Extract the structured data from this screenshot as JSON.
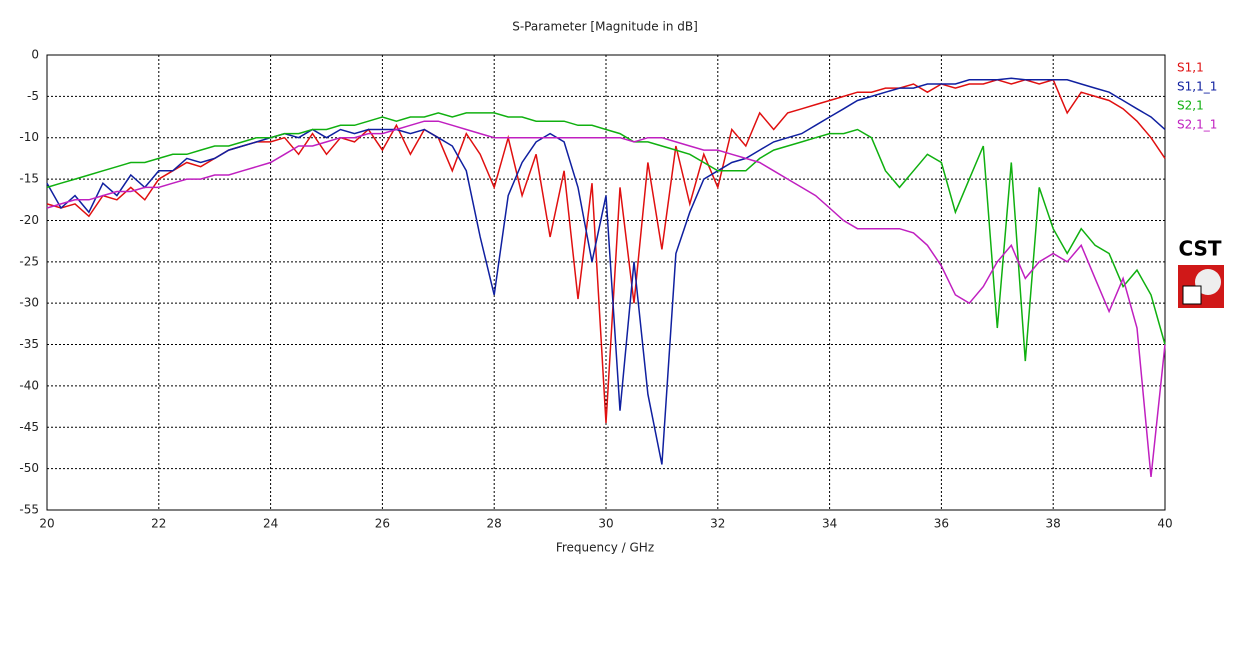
{
  "chart_data": {
    "type": "line",
    "title": "S-Parameter [Magnitude in dB]",
    "x_label": "Frequency / GHz",
    "logo": "CST",
    "x": [
      20,
      20.25,
      20.5,
      20.75,
      21,
      21.25,
      21.5,
      21.75,
      22,
      22.25,
      22.5,
      22.75,
      23,
      23.25,
      23.5,
      23.75,
      24,
      24.25,
      24.5,
      24.75,
      25,
      25.25,
      25.5,
      25.75,
      26,
      26.25,
      26.5,
      26.75,
      27,
      27.25,
      27.5,
      27.75,
      28,
      28.25,
      28.5,
      28.75,
      29,
      29.25,
      29.5,
      29.75,
      30,
      30.25,
      30.5,
      30.75,
      31,
      31.25,
      31.5,
      31.75,
      32,
      32.25,
      32.5,
      32.75,
      33,
      33.25,
      33.5,
      33.75,
      34,
      34.25,
      34.5,
      34.75,
      35,
      35.25,
      35.5,
      35.75,
      36,
      36.25,
      36.5,
      36.75,
      37,
      37.25,
      37.5,
      37.75,
      38,
      38.25,
      38.5,
      38.75,
      39,
      39.25,
      39.5,
      39.75,
      40
    ],
    "series": [
      {
        "name": "S1,1",
        "color": "#e01010",
        "values": [
          -18,
          -18.5,
          -18,
          -19.5,
          -17,
          -17.5,
          -16,
          -17.5,
          -15,
          -14,
          -13,
          -13.5,
          -12.5,
          -11.5,
          -11,
          -10.5,
          -10.5,
          -10,
          -12,
          -9.5,
          -12,
          -10,
          -10.5,
          -9,
          -11.5,
          -8.5,
          -12,
          -9,
          -10,
          -14,
          -9.5,
          -12,
          -16,
          -10,
          -17,
          -12,
          -22,
          -14,
          -29.5,
          -15.5,
          -44.5,
          -16,
          -30,
          -13,
          -23.5,
          -11,
          -18,
          -12,
          -16,
          -9,
          -11,
          -7,
          -9,
          -7,
          -6.5,
          -6,
          -5.5,
          -5,
          -4.5,
          -4.5,
          -4,
          -4,
          -3.5,
          -4.5,
          -3.5,
          -4,
          -3.5,
          -3.5,
          -3,
          -3.5,
          -3,
          -3.5,
          -3,
          -7,
          -4.5,
          -5,
          -5.5,
          -6.5,
          -8,
          -10,
          -12.5
        ]
      },
      {
        "name": "S1,1_1",
        "color": "#1020a0",
        "values": [
          -15.5,
          -18.5,
          -17,
          -19,
          -15.5,
          -17,
          -14.5,
          -16,
          -14,
          -14,
          -12.5,
          -13,
          -12.5,
          -11.5,
          -11,
          -10.5,
          -10,
          -9.5,
          -10,
          -9,
          -10,
          -9,
          -9.5,
          -9,
          -9,
          -9,
          -9.5,
          -9,
          -10,
          -11,
          -14,
          -22,
          -29,
          -17,
          -13,
          -10.5,
          -9.5,
          -10.5,
          -16,
          -25,
          -17,
          -43,
          -25,
          -41,
          -49.5,
          -24,
          -19,
          -15,
          -14,
          -13,
          -12.5,
          -11.5,
          -10.5,
          -10,
          -9.5,
          -8.5,
          -7.5,
          -6.5,
          -5.5,
          -5,
          -4.5,
          -4,
          -4,
          -3.5,
          -3.5,
          -3.5,
          -3,
          -3,
          -3,
          -2.8,
          -3,
          -3,
          -3,
          -3,
          -3.5,
          -4,
          -4.5,
          -5.5,
          -6.5,
          -7.5,
          -9
        ]
      },
      {
        "name": "S2,1",
        "color": "#10b010",
        "values": [
          -16,
          -15.5,
          -15,
          -14.5,
          -14,
          -13.5,
          -13,
          -13,
          -12.5,
          -12,
          -12,
          -11.5,
          -11,
          -11,
          -10.5,
          -10,
          -10,
          -9.5,
          -9.5,
          -9,
          -9,
          -8.5,
          -8.5,
          -8,
          -7.5,
          -8,
          -7.5,
          -7.5,
          -7,
          -7.5,
          -7,
          -7,
          -7,
          -7.5,
          -7.5,
          -8,
          -8,
          -8,
          -8.5,
          -8.5,
          -9,
          -9.5,
          -10.5,
          -10.5,
          -11,
          -11.5,
          -12,
          -13,
          -14,
          -14,
          -14,
          -12.5,
          -11.5,
          -11,
          -10.5,
          -10,
          -9.5,
          -9.5,
          -9,
          -10,
          -14,
          -16,
          -14,
          -12,
          -13,
          -19,
          -15,
          -11,
          -33,
          -13,
          -37,
          -16,
          -21,
          -24,
          -21,
          -23,
          -24,
          -28,
          -26,
          -29,
          -35
        ]
      },
      {
        "name": "S2,1_1",
        "color": "#c020c0",
        "values": [
          -18.5,
          -18,
          -17.5,
          -17.5,
          -17,
          -16.5,
          -16.5,
          -16,
          -16,
          -15.5,
          -15,
          -15,
          -14.5,
          -14.5,
          -14,
          -13.5,
          -13,
          -12,
          -11,
          -11,
          -10.5,
          -10,
          -10,
          -9.5,
          -9.5,
          -9,
          -8.5,
          -8,
          -8,
          -8.5,
          -9,
          -9.5,
          -10,
          -10,
          -10,
          -10,
          -10,
          -10,
          -10,
          -10,
          -10,
          -10,
          -10.5,
          -10,
          -10,
          -10.5,
          -11,
          -11.5,
          -11.5,
          -12,
          -12.5,
          -13,
          -14,
          -15,
          -16,
          -17,
          -18.5,
          -20,
          -21,
          -21,
          -21,
          -21,
          -21.5,
          -23,
          -25.5,
          -29,
          -30,
          -28,
          -25,
          -23,
          -27,
          -25,
          -24,
          -25,
          -23,
          -27,
          -31,
          -27,
          -33,
          -51,
          -35
        ]
      }
    ],
    "xlim": [
      20,
      40
    ],
    "ylim": [
      -55,
      0
    ],
    "xticks": [
      20,
      22,
      24,
      26,
      28,
      30,
      32,
      34,
      36,
      38,
      40
    ],
    "yticks": [
      0,
      -5,
      -10,
      -15,
      -20,
      -25,
      -30,
      -35,
      -40,
      -45,
      -50,
      -55
    ],
    "grid": true
  }
}
